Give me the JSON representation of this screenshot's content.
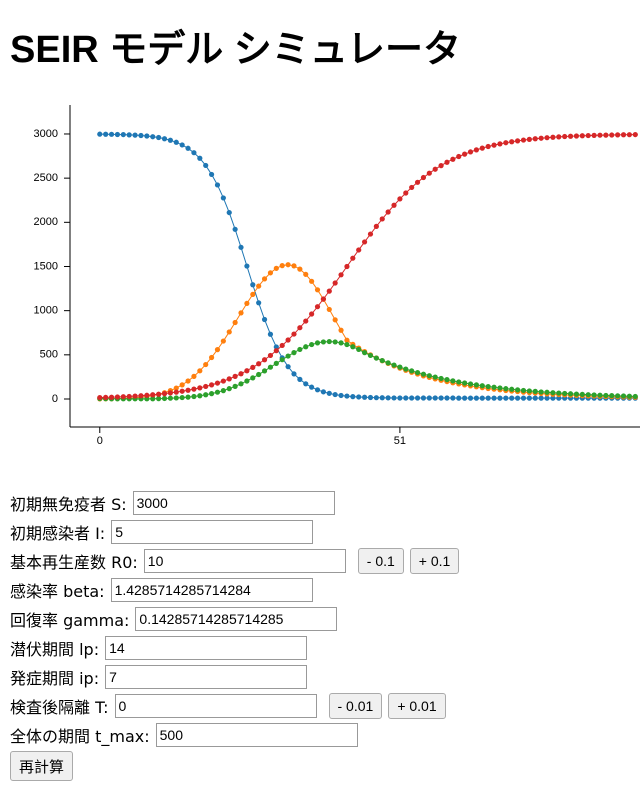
{
  "page_title": "SEIR モデル シミュレータ",
  "chart_data": {
    "type": "line",
    "x": [
      0,
      1,
      2,
      3,
      4,
      5,
      6,
      7,
      8,
      9,
      10,
      11,
      12,
      13,
      14,
      15,
      16,
      17,
      18,
      19,
      20,
      21,
      22,
      23,
      24,
      25,
      26,
      27,
      28,
      29,
      30,
      31,
      32,
      33,
      34,
      35,
      36,
      37,
      38,
      39,
      40,
      41,
      42,
      43,
      44,
      45,
      46,
      47,
      48,
      49,
      50,
      51,
      52,
      53,
      54,
      55,
      56,
      57,
      58,
      59,
      60,
      61,
      62,
      63,
      64,
      65,
      66,
      67,
      68,
      69,
      70,
      71,
      72,
      73,
      74,
      75,
      76,
      77,
      78,
      79,
      80,
      81,
      82,
      83,
      84,
      85,
      86,
      87,
      88,
      89,
      90,
      91
    ],
    "series": [
      {
        "color": "#1f77b4",
        "values": [
          2998,
          2997,
          2996,
          2994,
          2993,
          2990,
          2987,
          2983,
          2977,
          2969,
          2960,
          2946,
          2929,
          2906,
          2876,
          2838,
          2788,
          2725,
          2644,
          2542,
          2423,
          2276,
          2110,
          1921,
          1717,
          1505,
          1293,
          1089,
          900,
          733,
          589,
          466,
          366,
          284,
          222,
          172,
          134,
          104,
          81,
          64,
          50,
          40,
          33,
          27,
          23,
          20,
          17,
          15,
          14,
          13,
          12,
          11,
          11,
          11,
          11,
          11,
          11,
          11,
          11,
          11,
          11,
          10,
          10,
          10,
          10,
          10,
          10,
          10,
          10,
          10,
          10,
          10,
          10,
          10,
          10,
          10,
          10,
          10,
          10,
          10,
          10,
          10,
          10,
          10,
          10,
          10,
          10,
          10,
          10,
          10,
          10,
          10
        ]
      },
      {
        "color": "#ff7f0e",
        "values": [
          1,
          2,
          3,
          4,
          7,
          10,
          14,
          20,
          28,
          39,
          53,
          71,
          95,
          124,
          160,
          204,
          256,
          319,
          390,
          470,
          559,
          656,
          759,
          866,
          975,
          1082,
          1184,
          1278,
          1360,
          1428,
          1479,
          1510,
          1520,
          1507,
          1470,
          1411,
          1332,
          1236,
          1129,
          1014,
          896,
          778,
          665,
          619,
          576,
          537,
          500,
          465,
          433,
          403,
          375,
          349,
          325,
          303,
          282,
          262,
          244,
          228,
          212,
          197,
          184,
          171,
          159,
          148,
          138,
          128,
          119,
          111,
          104,
          96,
          90,
          84,
          78,
          72,
          67,
          63,
          58,
          54,
          51,
          47,
          44,
          41,
          38,
          35,
          33,
          31,
          28,
          26,
          25,
          23,
          21,
          20
        ]
      },
      {
        "color": "#2ca02c",
        "values": [
          5,
          4,
          3,
          3,
          2,
          2,
          2,
          2,
          2,
          3,
          4,
          6,
          9,
          12,
          16,
          21,
          28,
          37,
          48,
          61,
          77,
          95,
          117,
          143,
          172,
          204,
          239,
          277,
          318,
          360,
          403,
          445,
          486,
          525,
          561,
          591,
          616,
          635,
          646,
          650,
          646,
          635,
          616,
          591,
          561,
          525,
          493,
          463,
          435,
          409,
          384,
          361,
          339,
          318,
          299,
          281,
          264,
          248,
          233,
          219,
          205,
          193,
          181,
          170,
          160,
          150,
          141,
          133,
          125,
          117,
          110,
          103,
          97,
          91,
          86,
          80,
          76,
          71,
          67,
          63,
          59,
          55,
          52,
          49,
          46,
          43,
          40,
          38,
          36,
          34,
          31,
          29
        ]
      },
      {
        "color": "#d62728",
        "values": [
          16,
          18,
          20,
          23,
          26,
          29,
          33,
          37,
          42,
          48,
          54,
          61,
          69,
          78,
          88,
          99,
          112,
          126,
          142,
          160,
          180,
          203,
          228,
          256,
          286,
          320,
          358,
          399,
          444,
          493,
          547,
          606,
          668,
          735,
          807,
          882,
          962,
          1045,
          1132,
          1221,
          1313,
          1406,
          1500,
          1594,
          1687,
          1778,
          1867,
          1954,
          2038,
          2117,
          2193,
          2265,
          2332,
          2395,
          2453,
          2507,
          2556,
          2601,
          2642,
          2680,
          2714,
          2745,
          2772,
          2797,
          2820,
          2840,
          2858,
          2874,
          2888,
          2901,
          2912,
          2922,
          2931,
          2939,
          2946,
          2952,
          2958,
          2963,
          2967,
          2971,
          2974,
          2977,
          2980,
          2982,
          2984,
          2986,
          2987,
          2988,
          2990,
          2991,
          2992,
          2993
        ]
      }
    ],
    "xlim": [
      -5.4,
      91.8
    ],
    "xticks": [
      0,
      51
    ],
    "ylim": [
      -317,
      3328
    ],
    "yticks": [
      0,
      500,
      1000,
      1500,
      2000,
      2500,
      3000
    ]
  },
  "form": {
    "fields": [
      {
        "label": "初期無免疫者 S:",
        "value": "3000"
      },
      {
        "label": "初期感染者 I:",
        "value": "5"
      },
      {
        "label": "基本再生産数 R0:",
        "value": "10",
        "buttons": [
          "- 0.1",
          "+ 0.1"
        ]
      },
      {
        "label": "感染率 beta:",
        "value": "1.4285714285714284"
      },
      {
        "label": "回復率 gamma:",
        "value": "0.14285714285714285"
      },
      {
        "label": "潜伏期間 lp:",
        "value": "14"
      },
      {
        "label": "発症期間 ip:",
        "value": "7"
      },
      {
        "label": "検査後隔離 T:",
        "value": "0",
        "buttons": [
          "- 0.01",
          "+ 0.01"
        ]
      },
      {
        "label": "全体の期間 t_max:",
        "value": "500"
      }
    ],
    "submit": "再計算"
  }
}
